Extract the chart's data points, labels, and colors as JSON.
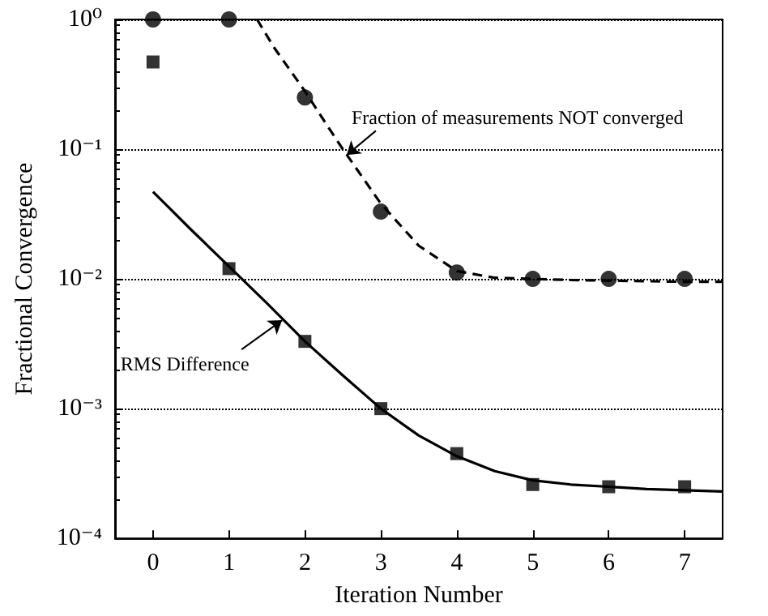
{
  "chart_data": {
    "type": "scatter",
    "xlabel": "Iteration Number",
    "ylabel": "Fractional Convergence",
    "xlim": [
      -0.5,
      7.5
    ],
    "xticks": [
      0,
      1,
      2,
      3,
      4,
      5,
      6,
      7
    ],
    "ylim": [
      0.0001,
      1
    ],
    "log": "y",
    "grid": "y",
    "yticks": [
      {
        "value": 0.0001,
        "label": "10⁻⁴"
      },
      {
        "value": 0.001,
        "label": "10⁻³"
      },
      {
        "value": 0.01,
        "label": "10⁻²"
      },
      {
        "value": 0.1,
        "label": "10⁻¹"
      },
      {
        "value": 1,
        "label": "10⁰"
      }
    ],
    "series": [
      {
        "marker": "circle",
        "color": "#000000",
        "x": [
          0,
          1,
          2,
          3,
          4,
          5,
          6,
          7
        ],
        "values": [
          1,
          1,
          0.25,
          0.033,
          0.0112,
          0.01,
          0.01,
          0.01
        ]
      },
      {
        "marker": "square",
        "color": "#000000",
        "x": [
          0,
          1,
          2,
          3,
          4,
          5,
          6,
          7
        ],
        "values": [
          0.47,
          0.012,
          0.0033,
          0.001,
          0.00045,
          0.00026,
          0.00025,
          0.00025
        ]
      },
      {
        "type": "line",
        "marker": "none",
        "line_style": "dashed",
        "color": "#000000",
        "x": [
          1.37,
          1.6,
          2,
          2.3,
          2.5,
          3,
          3.5,
          4,
          4.5,
          5,
          5.5,
          6,
          6.5,
          7,
          7.5
        ],
        "values": [
          1,
          0.6,
          0.28,
          0.15,
          0.1,
          0.038,
          0.018,
          0.0115,
          0.0102,
          0.01,
          0.0098,
          0.0097,
          0.0096,
          0.0095,
          0.0095
        ]
      },
      {
        "type": "line",
        "marker": "none",
        "line_style": "solid",
        "color": "#000000",
        "x": [
          0,
          0.5,
          1,
          1.5,
          2,
          2.5,
          3,
          3.5,
          4,
          4.5,
          5,
          5.5,
          6,
          6.5,
          7,
          7.5
        ],
        "values": [
          0.047,
          0.024,
          0.0125,
          0.0065,
          0.0033,
          0.0018,
          0.001,
          0.00062,
          0.00043,
          0.00033,
          0.00028,
          0.00026,
          0.00025,
          0.00024,
          0.000235,
          0.00023
        ]
      }
    ],
    "annotations": [
      {
        "text": "Fraction of measurements NOT converged",
        "x": 2.55,
        "y": 0.09
      },
      {
        "text": "RMS Difference",
        "x": 1.7,
        "y": 0.0048
      }
    ]
  }
}
